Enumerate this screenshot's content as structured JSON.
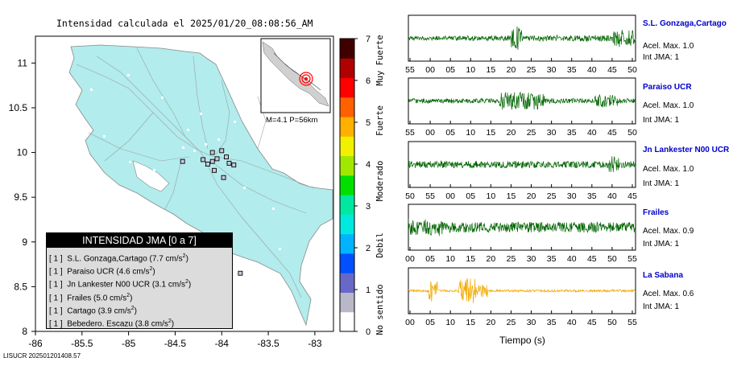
{
  "map_title": "Intensidad calculada el 2025/01/20_08:08:56_AM",
  "footer": "LISUCR 202501201408.57",
  "inset_label": "M=4.1 P=56km",
  "legend": {
    "title": "INTENSIDAD JMA [0 a 7]",
    "rows": [
      {
        "level": "[ 1 ]",
        "text": "S.L. Gonzaga,Cartago (7.7 cm/s",
        "sup": "2",
        "end": ")"
      },
      {
        "level": "[ 1 ]",
        "text": "Paraiso UCR (4.6 cm/s",
        "sup": "2",
        "end": ")"
      },
      {
        "level": "[ 1 ]",
        "text": "Jn Lankester N00 UCR (3.1 cm/s",
        "sup": "2",
        "end": ")"
      },
      {
        "level": "[ 1 ]",
        "text": "Frailes (5.0 cm/s",
        "sup": "2",
        "end": ")"
      },
      {
        "level": "[ 1 ]",
        "text": "Cartago (3.9 cm/s",
        "sup": "2",
        "end": ")"
      },
      {
        "level": "[ 1 ]",
        "text": "Bebedero. Escazu (3.8 cm/s",
        "sup": "2",
        "end": ")"
      }
    ]
  },
  "chart_data": [
    {
      "type": "map",
      "title": "Intensidad calculada el 2025/01/20_08:08:56_AM",
      "x_ticks": [
        "-86",
        "-85.5",
        "-85",
        "-84.5",
        "-84",
        "-83.5",
        "-83"
      ],
      "y_ticks": [
        "11",
        "10.5",
        "10",
        "9.5",
        "9",
        "8.5",
        "8"
      ],
      "xlim": [
        -86,
        -82.8
      ],
      "ylim": [
        8,
        11.3
      ],
      "stations": [
        {
          "lon": -84.1,
          "lat": 10.0
        },
        {
          "lon": -84.0,
          "lat": 10.02
        },
        {
          "lon": -83.95,
          "lat": 9.95
        },
        {
          "lon": -83.92,
          "lat": 9.88
        },
        {
          "lon": -83.87,
          "lat": 9.86
        },
        {
          "lon": -84.05,
          "lat": 9.93
        },
        {
          "lon": -84.1,
          "lat": 9.9
        },
        {
          "lon": -84.15,
          "lat": 9.87
        },
        {
          "lon": -84.08,
          "lat": 9.8
        },
        {
          "lon": -84.2,
          "lat": 9.92
        },
        {
          "lon": -84.42,
          "lat": 9.9
        },
        {
          "lon": -83.98,
          "lat": 9.72
        },
        {
          "lon": -83.8,
          "lat": 8.65
        }
      ],
      "color_scale": {
        "ticks": [
          "0",
          "1",
          "2",
          "3",
          "4",
          "5",
          "6",
          "7"
        ],
        "categories": [
          "No sentido",
          "Debil",
          "Moderado",
          "Fuerte",
          "Muy Fuerte"
        ],
        "colors": [
          "#ffffff",
          "#b8b8c8",
          "#6868c8",
          "#0050ff",
          "#00b4ff",
          "#00e8e0",
          "#00e8a0",
          "#00e000",
          "#a0e800",
          "#f0f000",
          "#ffb000",
          "#ff6000",
          "#ff0000",
          "#b00000",
          "#400000"
        ]
      }
    },
    {
      "type": "line",
      "xlabel": "Tiempo (s)",
      "series": [
        {
          "name": "S.L. Gonzaga,Cartago",
          "accel": "Acel. Max. 1.0",
          "int": "Int JMA: 1",
          "color": "#006400",
          "ticks": [
            "55",
            "00",
            "05",
            "10",
            "15",
            "20",
            "25",
            "30",
            "35",
            "40",
            "45",
            "50"
          ]
        },
        {
          "name": "Paraiso UCR",
          "accel": "Acel. Max. 1.0",
          "int": "Int JMA: 1",
          "color": "#006400",
          "ticks": [
            "55",
            "00",
            "05",
            "10",
            "15",
            "20",
            "25",
            "30",
            "35",
            "40",
            "45",
            "50"
          ]
        },
        {
          "name": "Jn Lankester N00 UCR",
          "accel": "Acel. Max. 1.0",
          "int": "Int JMA: 1",
          "color": "#006400",
          "ticks": [
            "50",
            "55",
            "00",
            "05",
            "10",
            "15",
            "20",
            "25",
            "30",
            "35",
            "40",
            "45"
          ]
        },
        {
          "name": "Frailes",
          "accel": "Acel. Max. 0.9",
          "int": "Int JMA: 1",
          "color": "#006400",
          "ticks": [
            "00",
            "05",
            "10",
            "15",
            "20",
            "25",
            "30",
            "35",
            "40",
            "45",
            "50",
            "55"
          ]
        },
        {
          "name": "La Sabana",
          "accel": "Acel. Max. 0.6",
          "int": "Int JMA: 1",
          "color": "#f0a800",
          "ticks": [
            "00",
            "05",
            "10",
            "15",
            "20",
            "25",
            "30",
            "35",
            "40",
            "45",
            "50",
            "55"
          ]
        }
      ]
    }
  ]
}
